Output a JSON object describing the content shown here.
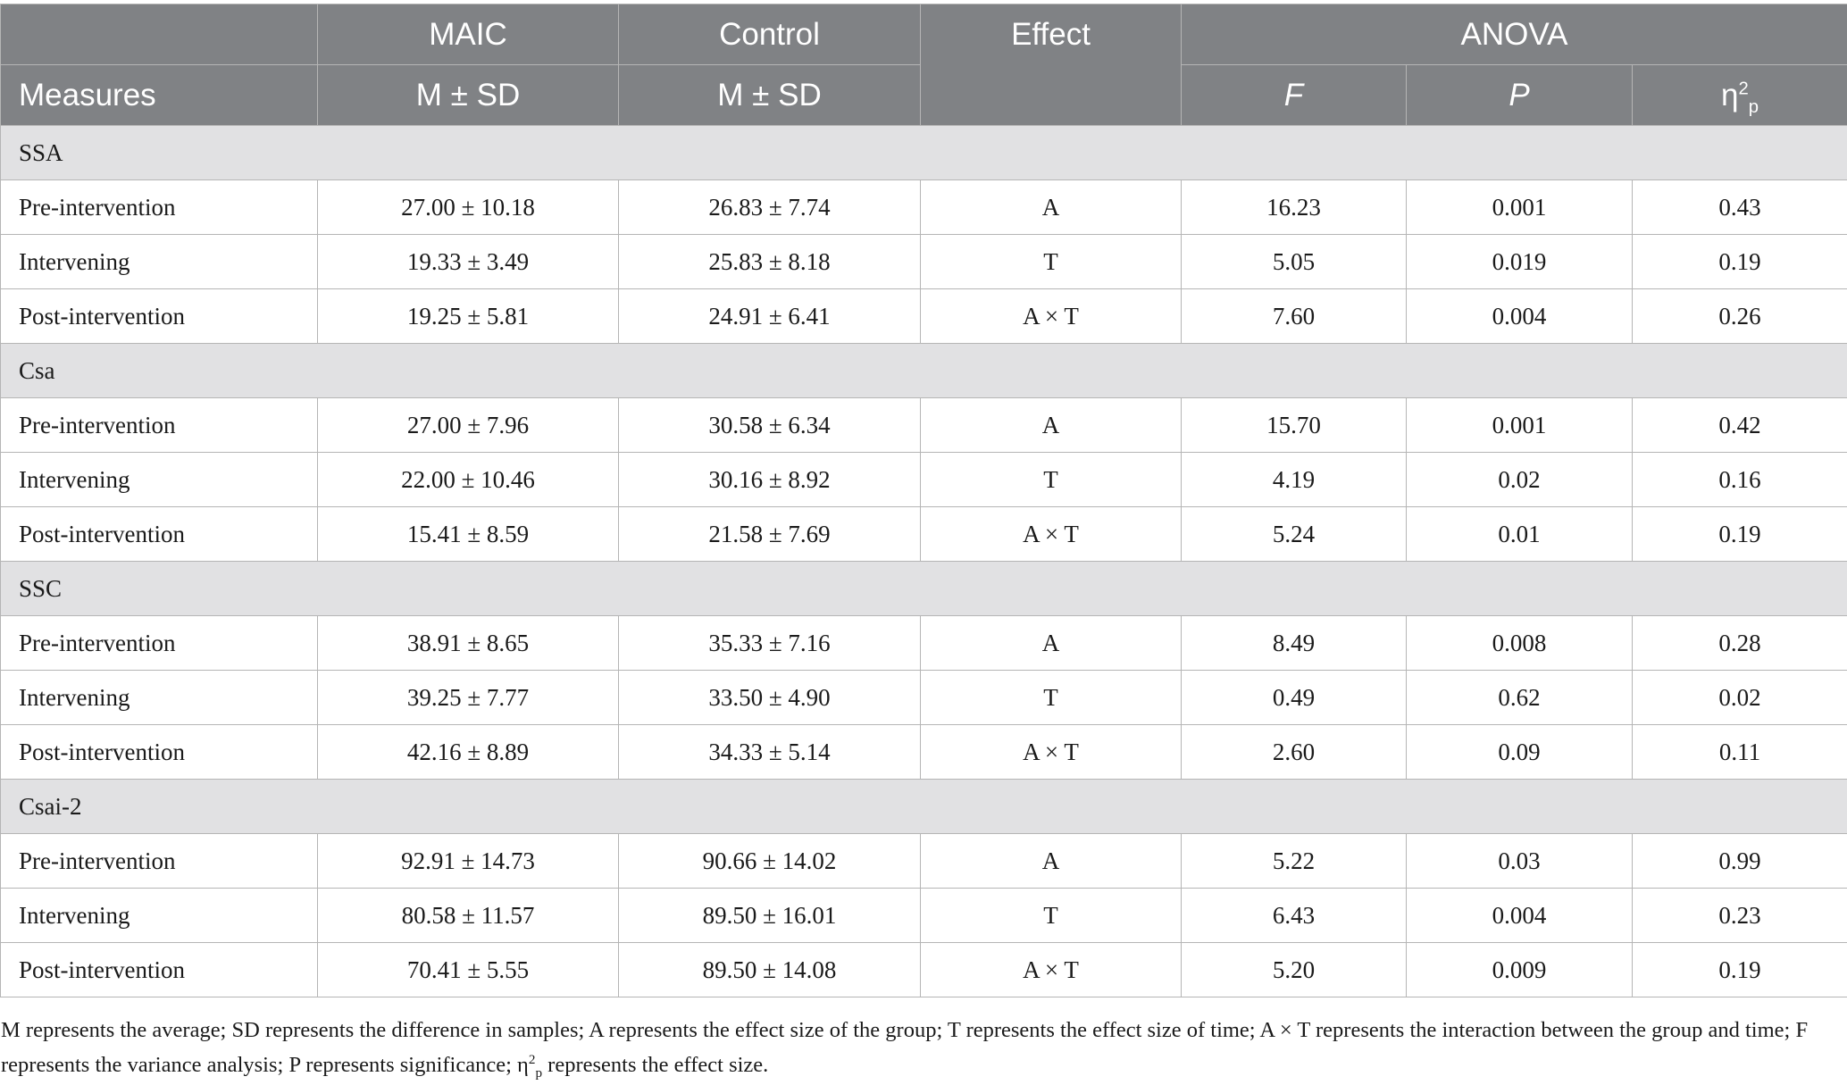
{
  "header": {
    "row1": [
      "MAIC",
      "Control",
      "Effect",
      "ANOVA"
    ],
    "measures": "Measures",
    "maic_stat": "M ± SD",
    "control_stat": "M ± SD",
    "f": "F",
    "p": "P",
    "eta_base": "η",
    "eta_sup": "2",
    "eta_sub": "p"
  },
  "sections": [
    {
      "name": "SSA",
      "rows": [
        {
          "label": "Pre-intervention",
          "maic": "27.00 ± 10.18",
          "control": "26.83 ± 7.74",
          "effect": "A",
          "f": "16.23",
          "p": "0.001",
          "eta": "0.43"
        },
        {
          "label": "Intervening",
          "maic": "19.33 ± 3.49",
          "control": "25.83 ± 8.18",
          "effect": "T",
          "f": "5.05",
          "p": "0.019",
          "eta": "0.19"
        },
        {
          "label": "Post-intervention",
          "maic": "19.25 ± 5.81",
          "control": "24.91 ± 6.41",
          "effect": "A × T",
          "f": "7.60",
          "p": "0.004",
          "eta": "0.26"
        }
      ]
    },
    {
      "name": "Csa",
      "rows": [
        {
          "label": "Pre-intervention",
          "maic": "27.00 ± 7.96",
          "control": "30.58 ± 6.34",
          "effect": "A",
          "f": "15.70",
          "p": "0.001",
          "eta": "0.42"
        },
        {
          "label": "Intervening",
          "maic": "22.00 ± 10.46",
          "control": "30.16 ± 8.92",
          "effect": "T",
          "f": "4.19",
          "p": "0.02",
          "eta": "0.16"
        },
        {
          "label": "Post-intervention",
          "maic": "15.41 ± 8.59",
          "control": "21.58 ± 7.69",
          "effect": "A × T",
          "f": "5.24",
          "p": "0.01",
          "eta": "0.19"
        }
      ]
    },
    {
      "name": "SSC",
      "rows": [
        {
          "label": "Pre-intervention",
          "maic": "38.91 ± 8.65",
          "control": "35.33 ± 7.16",
          "effect": "A",
          "f": "8.49",
          "p": "0.008",
          "eta": "0.28"
        },
        {
          "label": "Intervening",
          "maic": "39.25 ± 7.77",
          "control": "33.50 ± 4.90",
          "effect": "T",
          "f": "0.49",
          "p": "0.62",
          "eta": "0.02"
        },
        {
          "label": "Post-intervention",
          "maic": "42.16 ± 8.89",
          "control": "34.33 ± 5.14",
          "effect": "A × T",
          "f": "2.60",
          "p": "0.09",
          "eta": "0.11"
        }
      ]
    },
    {
      "name": "Csai-2",
      "rows": [
        {
          "label": "Pre-intervention",
          "maic": "92.91 ± 14.73",
          "control": "90.66 ± 14.02",
          "effect": "A",
          "f": "5.22",
          "p": "0.03",
          "eta": "0.99"
        },
        {
          "label": "Intervening",
          "maic": "80.58 ± 11.57",
          "control": "89.50 ± 16.01",
          "effect": "T",
          "f": "6.43",
          "p": "0.004",
          "eta": "0.23"
        },
        {
          "label": "Post-intervention",
          "maic": "70.41 ± 5.55",
          "control": "89.50 ± 14.08",
          "effect": "A × T",
          "f": "5.20",
          "p": "0.009",
          "eta": "0.19"
        }
      ]
    }
  ],
  "footnote": {
    "before": "M represents the average; SD represents the difference in samples; A represents the effect size of the group; T represents the effect size of time; A × T represents the interaction between the group and time; F represents the variance analysis; P represents significance; η",
    "sup": "2",
    "sub": "p",
    "after": " represents the effect size."
  }
}
